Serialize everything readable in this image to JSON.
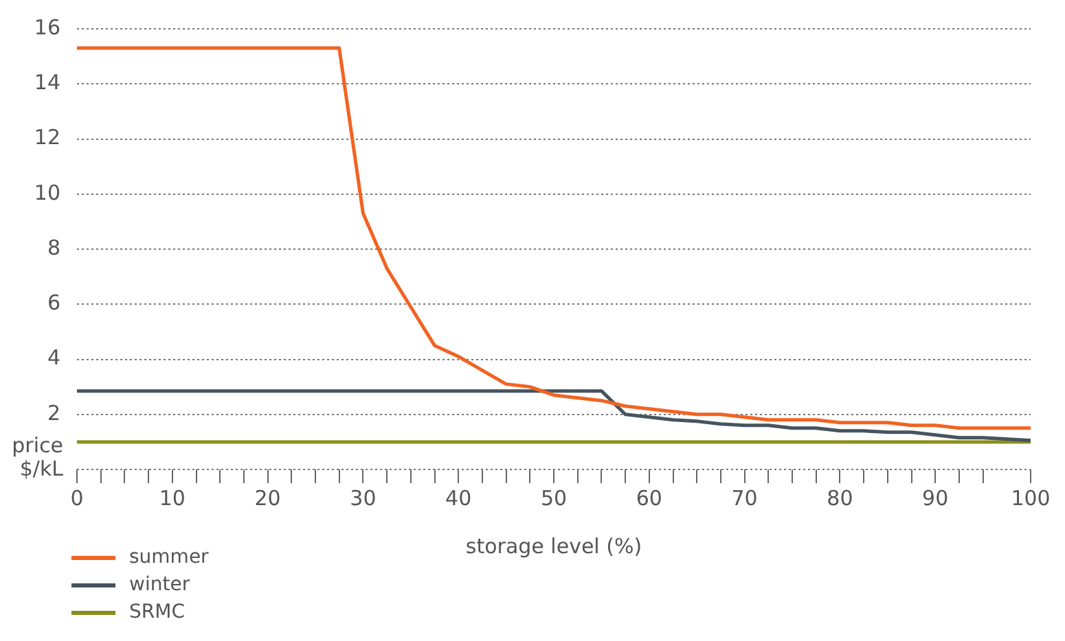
{
  "chart_data": {
    "type": "line",
    "xlabel": "storage level (%)",
    "ylabel": "price $/kL",
    "xlim": [
      0,
      100
    ],
    "xticks": [
      0,
      {
        "value": 2.5,
        "label": null
      },
      {
        "value": 5,
        "label": null
      },
      {
        "value": 7.5,
        "label": null
      },
      10,
      {
        "value": 12.5,
        "label": null
      },
      {
        "value": 15,
        "label": null
      },
      {
        "value": 17.5,
        "label": null
      },
      20,
      {
        "value": 22.5,
        "label": null
      },
      {
        "value": 25,
        "label": null
      },
      {
        "value": 27.5,
        "label": null
      },
      30,
      {
        "value": 32.5,
        "label": null
      },
      {
        "value": 35,
        "label": null
      },
      {
        "value": 37.5,
        "label": null
      },
      40,
      {
        "value": 42.5,
        "label": null
      },
      {
        "value": 45,
        "label": null
      },
      {
        "value": 47.5,
        "label": null
      },
      50,
      {
        "value": 52.5,
        "label": null
      },
      {
        "value": 55,
        "label": null
      },
      {
        "value": 57.5,
        "label": null
      },
      60,
      {
        "value": 62.5,
        "label": null
      },
      {
        "value": 65,
        "label": null
      },
      {
        "value": 67.5,
        "label": null
      },
      70,
      {
        "value": 72.5,
        "label": null
      },
      {
        "value": 75,
        "label": null
      },
      {
        "value": 77.5,
        "label": null
      },
      80,
      {
        "value": 82.5,
        "label": null
      },
      {
        "value": 85,
        "label": null
      },
      {
        "value": 87.5,
        "label": null
      },
      90,
      {
        "value": 92.5,
        "label": null
      },
      {
        "value": 95,
        "label": null
      },
      100
    ],
    "ylim": [
      0,
      16
    ],
    "yticks": [
      {
        "value": 0,
        "label": null
      },
      2,
      4,
      6,
      8,
      10,
      12,
      14,
      16
    ],
    "grid": "y",
    "legend": "bottom left",
    "marker": "none",
    "line_style": "solid",
    "series": [
      {
        "name": "summer",
        "color": "#f26322",
        "x": [
          0,
          27.5,
          30,
          32.5,
          35,
          37.5,
          40,
          42.5,
          45,
          47.5,
          50,
          52.5,
          55,
          57.5,
          60,
          62.5,
          65,
          67.5,
          70,
          72.5,
          75,
          77.5,
          80,
          82.5,
          85,
          87.5,
          90,
          92.5,
          95,
          100
        ],
        "values": [
          15.3,
          15.3,
          9.3,
          7.3,
          5.9,
          4.5,
          4.1,
          3.6,
          3.1,
          3.0,
          2.7,
          2.6,
          2.5,
          2.3,
          2.2,
          2.1,
          2.0,
          2.0,
          1.9,
          1.8,
          1.8,
          1.8,
          1.7,
          1.7,
          1.7,
          1.6,
          1.6,
          1.5,
          1.5,
          1.5
        ]
      },
      {
        "name": "winter",
        "color": "#46545f",
        "x": [
          0,
          55,
          57.5,
          60,
          62.5,
          65,
          67.5,
          70,
          72.5,
          75,
          77.5,
          80,
          82.5,
          85,
          87.5,
          90,
          92.5,
          95,
          100
        ],
        "values": [
          2.85,
          2.85,
          2.0,
          1.9,
          1.8,
          1.75,
          1.65,
          1.6,
          1.6,
          1.5,
          1.5,
          1.4,
          1.4,
          1.35,
          1.35,
          1.25,
          1.15,
          1.15,
          1.05
        ]
      },
      {
        "name": "SRMC",
        "color": "#8a8f1a",
        "x": [
          0,
          100
        ],
        "values": [
          1.0,
          1.0
        ]
      }
    ]
  }
}
